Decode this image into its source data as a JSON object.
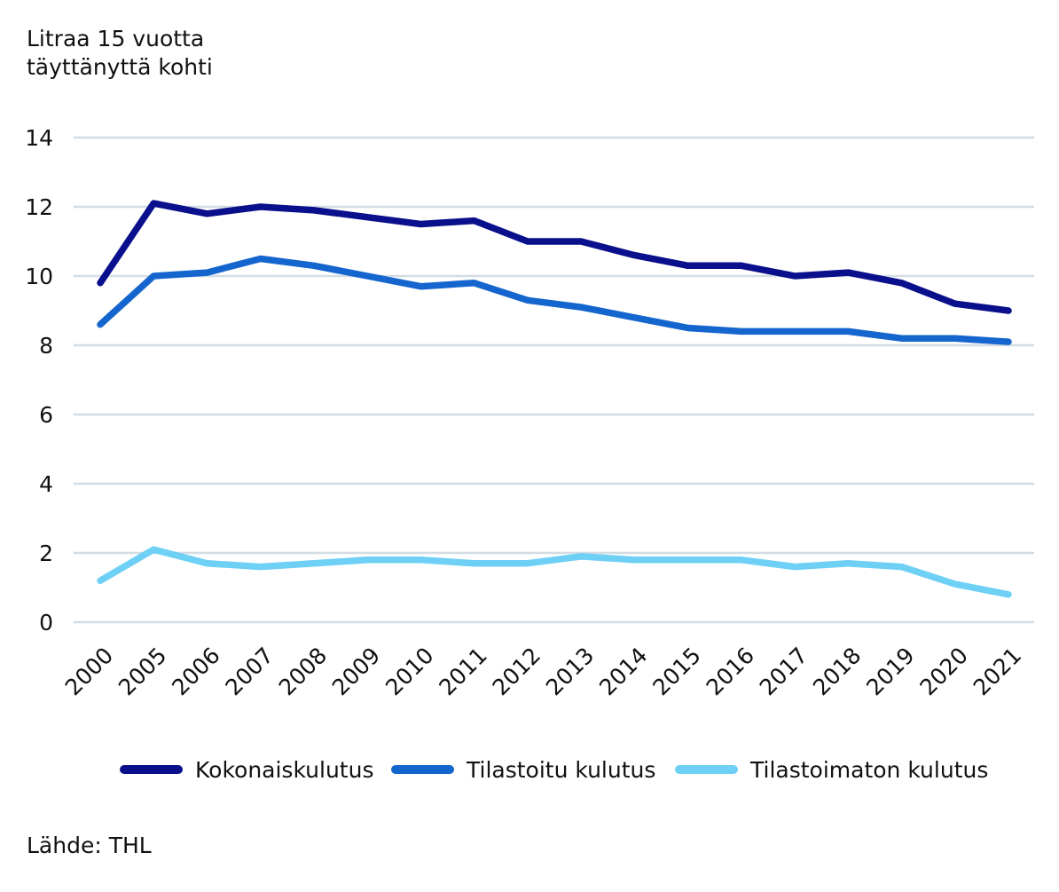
{
  "chart_data": {
    "type": "line",
    "ylabel_lines": [
      "Litraa 15 vuotta",
      "täyttänyttä kohti"
    ],
    "xlabel": "",
    "ylim": [
      0,
      14
    ],
    "yticks": [
      0,
      2,
      4,
      6,
      8,
      10,
      12,
      14
    ],
    "categories": [
      "2000",
      "2005",
      "2006",
      "2007",
      "2008",
      "2009",
      "2010",
      "2011",
      "2012",
      "2013",
      "2014",
      "2015",
      "2016",
      "2017",
      "2018",
      "2019",
      "2020",
      "2021"
    ],
    "grid": true,
    "legend_position": "bottom",
    "series": [
      {
        "name": "Kokonaiskulutus",
        "color": "#0a0f8c",
        "values": [
          9.8,
          12.1,
          11.8,
          12.0,
          11.9,
          11.7,
          11.5,
          11.6,
          11.0,
          11.0,
          10.6,
          10.3,
          10.3,
          10.0,
          10.1,
          9.8,
          9.2,
          9.0
        ]
      },
      {
        "name": "Tilastoitu kulutus",
        "color": "#1565cf",
        "values": [
          8.6,
          10.0,
          10.1,
          10.5,
          10.3,
          10.0,
          9.7,
          9.8,
          9.3,
          9.1,
          8.8,
          8.5,
          8.4,
          8.4,
          8.4,
          8.2,
          8.2,
          8.1
        ]
      },
      {
        "name": "Tilastoimaton kulutus",
        "color": "#6fd0f6",
        "values": [
          1.2,
          2.1,
          1.7,
          1.6,
          1.7,
          1.8,
          1.8,
          1.7,
          1.7,
          1.9,
          1.8,
          1.8,
          1.8,
          1.6,
          1.7,
          1.6,
          1.1,
          0.8
        ]
      }
    ]
  },
  "source": "Lähde: THL",
  "colors": {
    "grid": "#d3dde3",
    "text": "#111111"
  }
}
